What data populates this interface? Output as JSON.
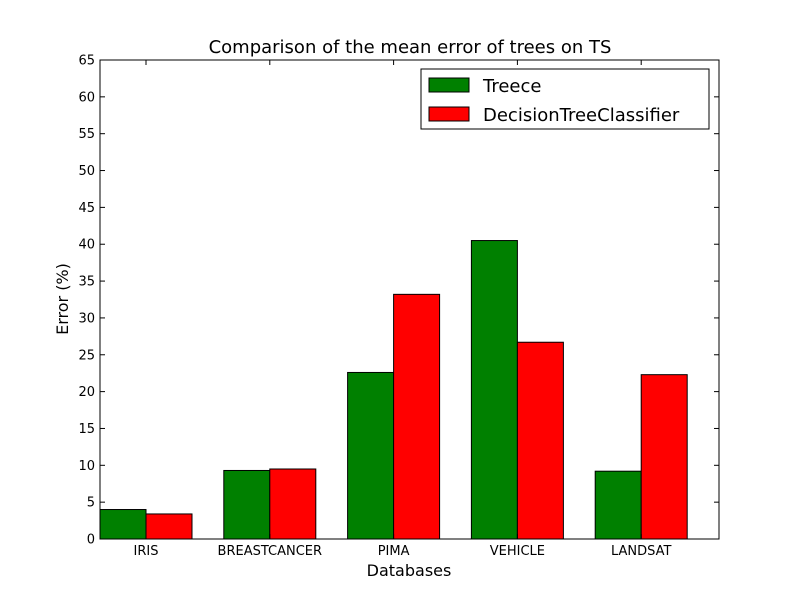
{
  "chart_data": {
    "type": "bar",
    "title": "Comparison of the mean error of trees on TS",
    "xlabel": "Databases",
    "ylabel": "Error (%)",
    "ylim": [
      0,
      65
    ],
    "yticks": [
      0,
      5,
      10,
      15,
      20,
      25,
      30,
      35,
      40,
      45,
      50,
      55,
      60,
      65
    ],
    "categories": [
      "IRIS",
      "BREASTCANCER",
      "PIMA",
      "VEHICLE",
      "LANDSAT"
    ],
    "series": [
      {
        "name": "Treece",
        "color": "#008000",
        "values": [
          4.0,
          9.3,
          22.6,
          40.5,
          9.2
        ]
      },
      {
        "name": "DecisionTreeClassifier",
        "color": "#ff0000",
        "values": [
          3.4,
          9.5,
          33.2,
          26.7,
          22.3
        ]
      }
    ],
    "legend_position": "top-right",
    "grid": false
  }
}
